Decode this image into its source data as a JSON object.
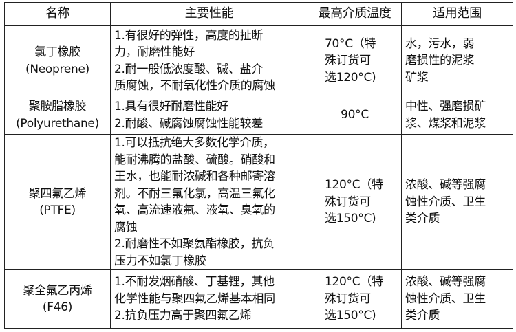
{
  "header": [
    "名称",
    "主要性能",
    "最高介质温度",
    "适用范围"
  ],
  "rows": [
    {
      "name": [
        "氯丁橡胶",
        "(Neoprene)"
      ],
      "performance": [
        "1.有很好的弹性，高度的扯断",
        "力，耐磨性能好",
        "2.耐一般低浓度酸、碱、盐介",
        "质腐蚀，不耐氧化性介质的腐蚀"
      ],
      "temp": [
        "70°C（特",
        "殊订货可",
        "选120°C)"
      ],
      "scope": [
        "水，污水，弱",
        "磨损性的泥浆",
        "矿浆"
      ]
    },
    {
      "name": [
        "聚胺脂橡胶",
        "(Polyurethane)"
      ],
      "performance": [
        "1.具有很好耐磨性能好",
        "2.耐酸、碱腐蚀腐蚀性能较差"
      ],
      "temp": [
        "90°C"
      ],
      "scope": [
        "中性、强磨损矿",
        "浆、煤浆和泥浆"
      ]
    },
    {
      "name": [
        "聚四氟乙烯",
        "(PTFE)"
      ],
      "performance": [
        "1.可以抵抗绝大多数化学介质，",
        "能耐沸腾的盐酸、硫酸。硝酸和",
        "王水，也能耐浓碱和各种邮寄溶",
        "剂。不耐三氟化氯，高温三氟化",
        "氧、高流速液氟、液氧、臭氧的",
        "腐蚀",
        "2.耐磨性不如聚氨酯橡胶，抗负",
        "压力不如氯丁橡胶"
      ],
      "temp": [
        "120°C（特",
        "殊订货可",
        "选150°C)"
      ],
      "scope": [
        "浓酸、碱等强腐",
        "蚀性介质、卫生",
        "类介质"
      ]
    },
    {
      "name": [
        "聚全氟乙丙烯",
        "(F46)"
      ],
      "performance": [
        "1.不耐发烟硝酸、丁基锂，其他",
        "化学性能与聚四氟乙烯基本相同",
        "2.抗负压力高于聚四氟乙烯"
      ],
      "temp": [
        "120°C（特",
        "殊订货可",
        "选150°C)"
      ],
      "scope": [
        "浓酸、碱等强腐",
        "蚀性介质、卫生",
        "类介质"
      ]
    }
  ]
}
